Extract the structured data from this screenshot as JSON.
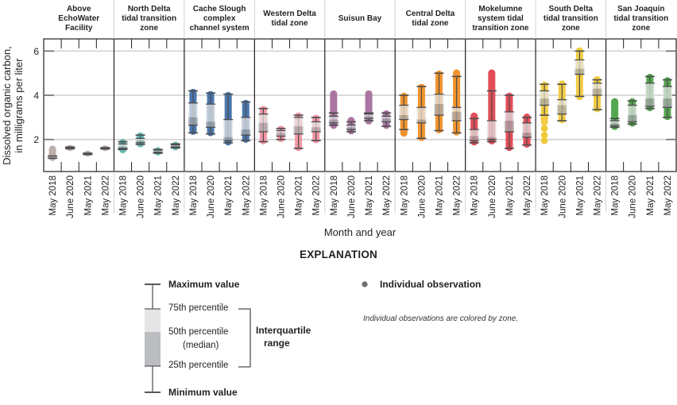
{
  "chart_data": {
    "type": "box",
    "ylabel_line1": "Dissolved organic carbon,",
    "ylabel_line2": "in milligrams per liter",
    "xlabel": "Month and year",
    "ylim": [
      0.55,
      6.55
    ],
    "yticks": [
      "2",
      "4",
      "6"
    ],
    "ytick_values": [
      2,
      4,
      6
    ],
    "grid": true,
    "categories": [
      "May 2018",
      "June 2020",
      "May 2021",
      "May 2022"
    ],
    "panels": [
      {
        "zone": [
          "Above",
          "EchoWater",
          "Facility"
        ],
        "color": "#b7aaa6",
        "boxes": [
          {
            "min": 1.15,
            "q1": 1.15,
            "median": 1.2,
            "q3": 1.25,
            "max": 1.25,
            "obs": [
              1.1,
              1.65
            ]
          },
          {
            "min": 1.58,
            "q1": 1.6,
            "median": 1.62,
            "q3": 1.64,
            "max": 1.66,
            "obs": [
              1.55,
              1.68
            ]
          },
          {
            "min": 1.32,
            "q1": 1.33,
            "median": 1.35,
            "q3": 1.37,
            "max": 1.38,
            "obs": [
              1.3,
              1.42
            ]
          },
          {
            "min": 1.57,
            "q1": 1.58,
            "median": 1.6,
            "q3": 1.62,
            "max": 1.63,
            "obs": [
              1.55,
              1.66
            ]
          }
        ]
      },
      {
        "zone": [
          "North Delta",
          "tidal transition",
          "zone"
        ],
        "color": "#5bb5ae",
        "boxes": [
          {
            "min": 1.55,
            "q1": 1.6,
            "median": 1.68,
            "q3": 1.8,
            "max": 1.9,
            "obs": [
              1.45,
              1.95
            ]
          },
          {
            "min": 1.78,
            "q1": 1.85,
            "median": 1.95,
            "q3": 2.05,
            "max": 2.2,
            "obs": [
              1.72,
              2.25
            ]
          },
          {
            "min": 1.38,
            "q1": 1.42,
            "median": 1.47,
            "q3": 1.52,
            "max": 1.55,
            "obs": [
              1.35,
              1.58
            ]
          },
          {
            "min": 1.62,
            "q1": 1.66,
            "median": 1.7,
            "q3": 1.75,
            "max": 1.8,
            "obs": [
              1.58,
              1.83
            ]
          }
        ]
      },
      {
        "zone": [
          "Cache Slough",
          "complex",
          "channel system"
        ],
        "color": "#3f6fa6",
        "boxes": [
          {
            "min": 2.3,
            "q1": 2.65,
            "median": 3.0,
            "q3": 3.65,
            "max": 4.2,
            "obs": [
              2.28,
              4.22
            ]
          },
          {
            "min": 2.25,
            "q1": 2.55,
            "median": 2.8,
            "q3": 3.6,
            "max": 4.1,
            "obs": [
              2.22,
              4.12
            ]
          },
          {
            "min": 1.85,
            "q1": 1.95,
            "median": 2.1,
            "q3": 2.9,
            "max": 4.05,
            "obs": [
              1.8,
              4.08
            ]
          },
          {
            "min": 1.95,
            "q1": 2.2,
            "median": 2.45,
            "q3": 3.0,
            "max": 3.7,
            "obs": [
              1.92,
              3.72
            ]
          }
        ]
      },
      {
        "zone": [
          "Western Delta",
          "tidal zone"
        ],
        "color": "#f2909e",
        "boxes": [
          {
            "min": 1.9,
            "q1": 2.35,
            "median": 2.75,
            "q3": 3.15,
            "max": 3.4,
            "obs": [
              1.85,
              3.45
            ]
          },
          {
            "min": 2.0,
            "q1": 2.15,
            "median": 2.3,
            "q3": 2.4,
            "max": 2.5,
            "obs": [
              1.95,
              2.55
            ]
          },
          {
            "min": 1.6,
            "q1": 2.25,
            "median": 2.6,
            "q3": 3.0,
            "max": 3.1,
            "obs": [
              1.55,
              3.15
            ]
          },
          {
            "min": 1.95,
            "q1": 2.35,
            "median": 2.55,
            "q3": 2.8,
            "max": 3.0,
            "obs": [
              1.9,
              3.05
            ]
          }
        ]
      },
      {
        "zone": [
          "Suisun Bay"
        ],
        "color": "#a66e9d",
        "boxes": [
          {
            "min": 2.65,
            "q1": 2.75,
            "median": 2.9,
            "q3": 3.05,
            "max": 3.2,
            "obs": [
              2.55,
              4.15
            ]
          },
          {
            "min": 2.35,
            "q1": 2.45,
            "median": 2.55,
            "q3": 2.65,
            "max": 2.8,
            "obs": [
              2.3,
              2.95
            ]
          },
          {
            "min": 2.85,
            "q1": 2.95,
            "median": 3.05,
            "q3": 3.15,
            "max": 3.2,
            "obs": [
              2.75,
              4.15
            ]
          },
          {
            "min": 2.6,
            "q1": 2.8,
            "median": 2.95,
            "q3": 3.05,
            "max": 3.2,
            "obs": [
              2.55,
              3.25
            ]
          }
        ]
      },
      {
        "zone": [
          "Central Delta",
          "tidal zone"
        ],
        "color": "#f08d22",
        "boxes": [
          {
            "min": 2.45,
            "q1": 2.9,
            "median": 3.1,
            "q3": 3.55,
            "max": 4.0,
            "obs": [
              2.2,
              4.05
            ]
          },
          {
            "min": 2.05,
            "q1": 2.75,
            "median": 2.9,
            "q3": 3.45,
            "max": 4.4,
            "obs": [
              2.0,
              4.45
            ]
          },
          {
            "min": 2.4,
            "q1": 3.1,
            "median": 3.6,
            "q3": 4.05,
            "max": 5.0,
            "obs": [
              2.35,
              5.05
            ]
          },
          {
            "min": 2.3,
            "q1": 2.85,
            "median": 3.25,
            "q3": 3.45,
            "max": 4.85,
            "obs": [
              2.25,
              5.1
            ]
          }
        ]
      },
      {
        "zone": [
          "Mokelumne",
          "system tidal",
          "transition zone"
        ],
        "color": "#e0434f",
        "boxes": [
          {
            "min": 1.85,
            "q1": 1.95,
            "median": 2.15,
            "q3": 2.45,
            "max": 2.95,
            "obs": [
              1.8,
              3.15
            ]
          },
          {
            "min": 1.9,
            "q1": 2.0,
            "median": 2.1,
            "q3": 2.85,
            "max": 4.2,
            "obs": [
              1.85,
              5.1
            ]
          },
          {
            "min": 1.6,
            "q1": 2.35,
            "median": 2.85,
            "q3": 3.25,
            "max": 4.0,
            "obs": [
              1.55,
              4.05
            ]
          },
          {
            "min": 1.75,
            "q1": 2.1,
            "median": 2.3,
            "q3": 2.75,
            "max": 3.0,
            "obs": [
              1.7,
              3.1
            ]
          }
        ]
      },
      {
        "zone": [
          "South Delta",
          "tidal transition",
          "zone"
        ],
        "color": "#f0c93a",
        "boxes": [
          {
            "min": 3.1,
            "q1": 3.55,
            "median": 3.85,
            "q3": 4.2,
            "max": 4.5,
            "obs": [
              2.7,
              4.55
            ],
            "extra_obs": [
              1.95,
              2.2,
              2.5
            ]
          },
          {
            "min": 2.85,
            "q1": 3.15,
            "median": 3.55,
            "q3": 3.8,
            "max": 4.5,
            "obs": [
              2.8,
              4.6
            ]
          },
          {
            "min": 3.95,
            "q1": 4.95,
            "median": 5.2,
            "q3": 5.6,
            "max": 6.0,
            "obs": [
              3.85,
              6.1
            ]
          },
          {
            "min": 3.35,
            "q1": 4.0,
            "median": 4.3,
            "q3": 4.55,
            "max": 4.7,
            "obs": [
              3.3,
              4.8
            ]
          }
        ]
      },
      {
        "zone": [
          "San Joaquin",
          "tidal transition",
          "zone"
        ],
        "color": "#4aa246",
        "boxes": [
          {
            "min": 2.55,
            "q1": 2.62,
            "median": 2.72,
            "q3": 2.85,
            "max": 2.95,
            "obs": [
              2.5,
              3.8
            ]
          },
          {
            "min": 2.7,
            "q1": 2.8,
            "median": 3.1,
            "q3": 3.55,
            "max": 3.75,
            "obs": [
              2.65,
              3.8
            ]
          },
          {
            "min": 3.4,
            "q1": 3.5,
            "median": 3.85,
            "q3": 4.55,
            "max": 4.85,
            "obs": [
              3.35,
              4.9
            ]
          },
          {
            "min": 3.0,
            "q1": 3.45,
            "median": 3.85,
            "q3": 4.4,
            "max": 4.7,
            "obs": [
              2.95,
              4.75
            ]
          }
        ]
      }
    ]
  },
  "legend": {
    "title": "EXPLANATION",
    "max_label": "Maximum value",
    "p75_label": "75th percentile",
    "p50_label_line1": "50th percentile",
    "p50_label_line2": "(median)",
    "p25_label": "25th percentile",
    "min_label": "Minimum value",
    "iqr_label_line1": "Interquartile",
    "iqr_label_line2": "range",
    "obs_label": "Individual observation",
    "note": "Individual observations are colored by zone.",
    "obs_color": "#6d6e71"
  }
}
